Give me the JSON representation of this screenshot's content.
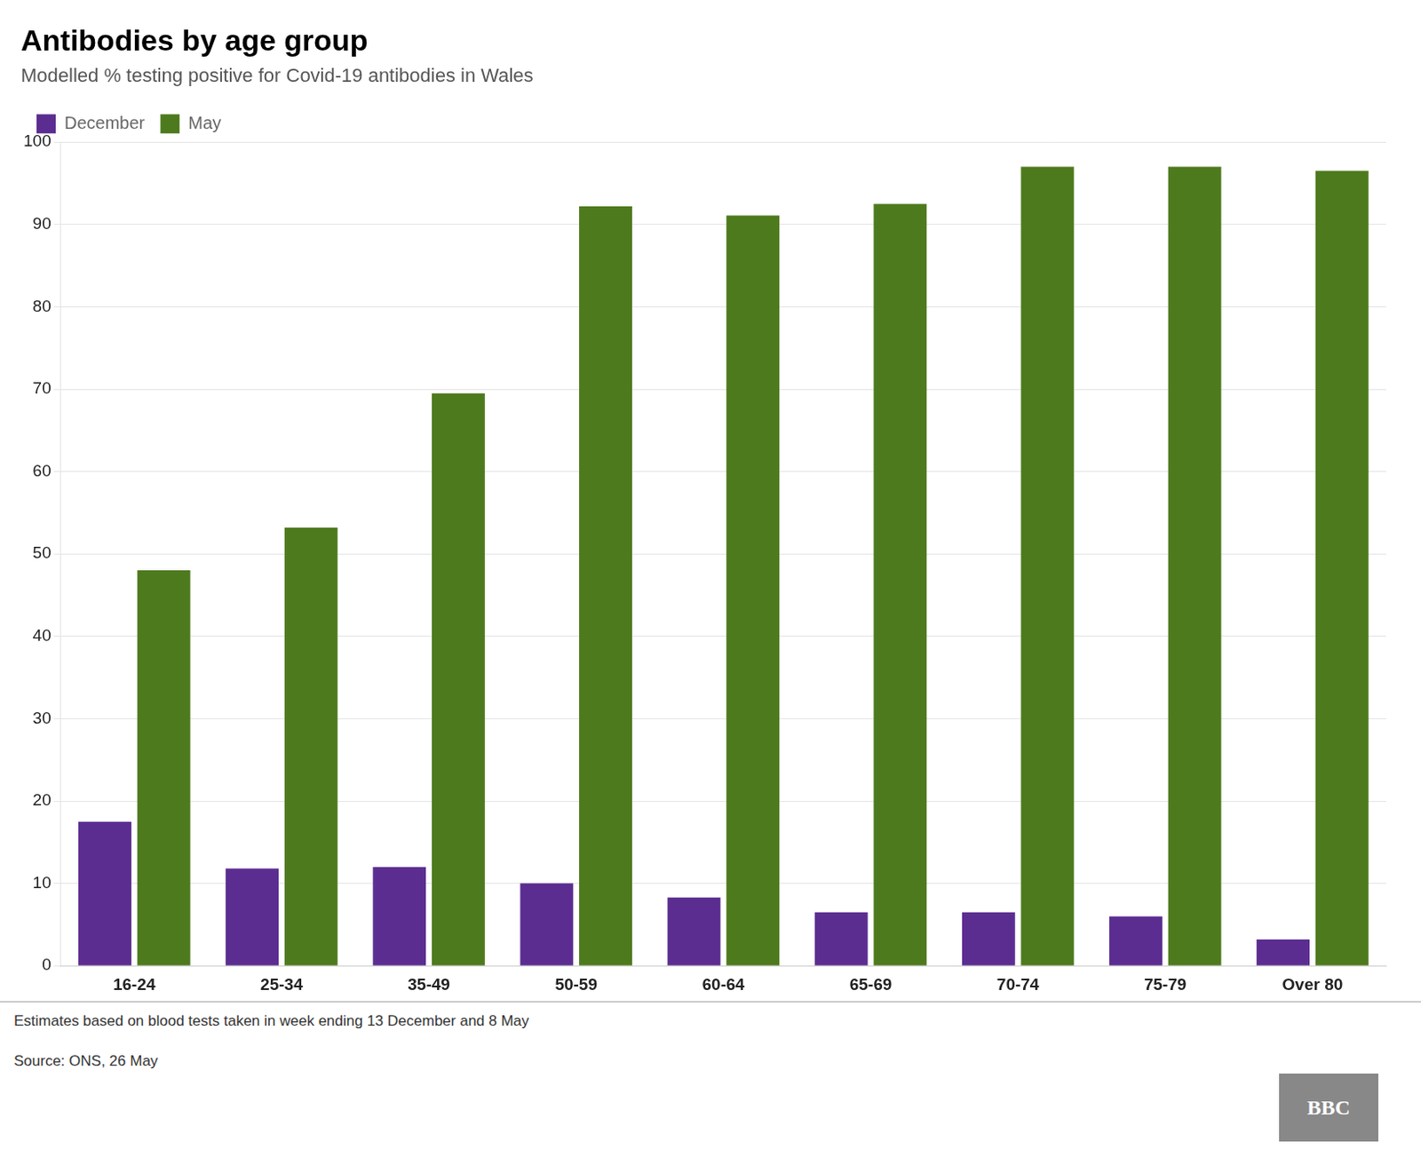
{
  "chart_data": {
    "type": "bar",
    "title": "Antibodies by age group",
    "subtitle": "Modelled % testing positive for Covid-19 antibodies in Wales",
    "categories": [
      "16-24",
      "25-34",
      "35-49",
      "50-59",
      "60-64",
      "65-69",
      "70-74",
      "75-79",
      "Over 80"
    ],
    "series": [
      {
        "name": "December",
        "color": "#5c2d91",
        "values": [
          17.5,
          11.8,
          12.0,
          10.0,
          8.3,
          6.5,
          6.5,
          6.0,
          3.2
        ]
      },
      {
        "name": "May",
        "color": "#4e7a1e",
        "values": [
          48.0,
          53.2,
          69.5,
          92.2,
          91.1,
          92.5,
          97.0,
          97.0,
          96.5
        ]
      }
    ],
    "ylim": [
      0,
      100
    ],
    "yticks": [
      0,
      10,
      20,
      30,
      40,
      50,
      60,
      70,
      80,
      90,
      100
    ],
    "grid": true,
    "legend": "top left",
    "annotations": [
      "Estimates based on blood tests taken in week ending 13 December and 8 May",
      "Source: ONS, 26 May",
      "BBC"
    ]
  }
}
